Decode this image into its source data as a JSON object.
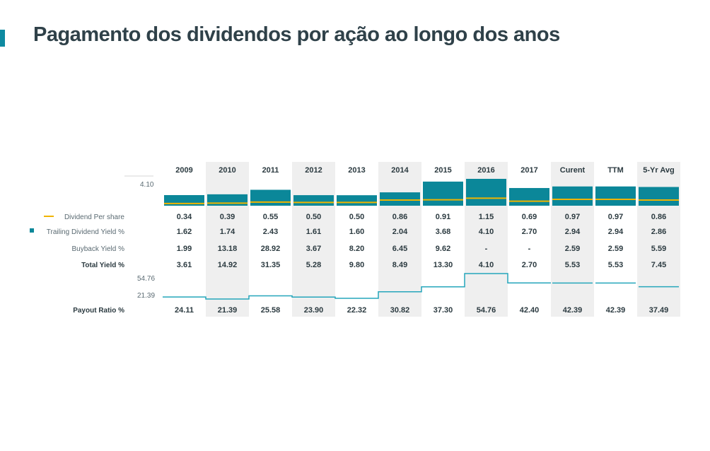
{
  "page": {
    "title": "Pagamento dos dividendos por ação ao longo dos anos"
  },
  "colors": {
    "accent": "#0e8aa1",
    "yield_bar": "#0b8799",
    "dividend_line": "#f0b400",
    "payout_line": "#25a6bb",
    "shaded_column": "#efefef",
    "title_text": "#2f4149",
    "label_text": "#5a6a72",
    "value_text": "#2b3a40"
  },
  "chart_data": {
    "type": "table",
    "columns": [
      "2009",
      "2010",
      "2011",
      "2012",
      "2013",
      "2014",
      "2015",
      "2016",
      "2017",
      "Curent",
      "TTM",
      "5-Yr Avg"
    ],
    "shaded_columns": [
      "2010",
      "2012",
      "2014",
      "2016",
      "Curent",
      "5-Yr Avg"
    ],
    "yield_axis_max_label": "4.10",
    "payout_axis_labels": [
      "54.76",
      "21.39"
    ],
    "rows": [
      {
        "label": "Dividend Per share",
        "legend": "line",
        "bold": false,
        "values": [
          "0.34",
          "0.39",
          "0.55",
          "0.50",
          "0.50",
          "0.86",
          "0.91",
          "1.15",
          "0.69",
          "0.97",
          "0.97",
          "0.86"
        ]
      },
      {
        "label": "Trailing Dividend Yield %",
        "legend": "square",
        "bold": false,
        "values": [
          "1.62",
          "1.74",
          "2.43",
          "1.61",
          "1.60",
          "2.04",
          "3.68",
          "4.10",
          "2.70",
          "2.94",
          "2.94",
          "2.86"
        ]
      },
      {
        "label": "Buyback Yield %",
        "legend": "none",
        "bold": false,
        "values": [
          "1.99",
          "13.18",
          "28.92",
          "3.67",
          "8.20",
          "6.45",
          "9.62",
          "-",
          "-",
          "2.59",
          "2.59",
          "5.59"
        ]
      },
      {
        "label": "Total Yield %",
        "legend": "none",
        "bold": true,
        "values": [
          "3.61",
          "14.92",
          "31.35",
          "5.28",
          "9.80",
          "8.49",
          "13.30",
          "4.10",
          "2.70",
          "5.53",
          "5.53",
          "7.45"
        ]
      }
    ],
    "payout": {
      "label": "Payout Ratio %",
      "values": [
        "24.11",
        "21.39",
        "25.58",
        "23.90",
        "22.32",
        "30.82",
        "37.30",
        "54.76",
        "42.40",
        "42.39",
        "42.39",
        "37.49"
      ]
    },
    "series": [
      {
        "name": "Dividend Per share",
        "type": "line",
        "values": [
          0.34,
          0.39,
          0.55,
          0.5,
          0.5,
          0.86,
          0.91,
          1.15,
          0.69,
          0.97,
          0.97,
          0.86
        ]
      },
      {
        "name": "Trailing Dividend Yield %",
        "type": "bar",
        "values": [
          1.62,
          1.74,
          2.43,
          1.61,
          1.6,
          2.04,
          3.68,
          4.1,
          2.7,
          2.94,
          2.94,
          2.86
        ]
      },
      {
        "name": "Payout Ratio %",
        "type": "step",
        "values": [
          24.11,
          21.39,
          25.58,
          23.9,
          22.32,
          30.82,
          37.3,
          54.76,
          42.4,
          42.39,
          42.39,
          37.49
        ]
      }
    ],
    "ylim_yield": [
      0,
      4.1
    ],
    "ylim_payout": [
      21.39,
      54.76
    ]
  }
}
